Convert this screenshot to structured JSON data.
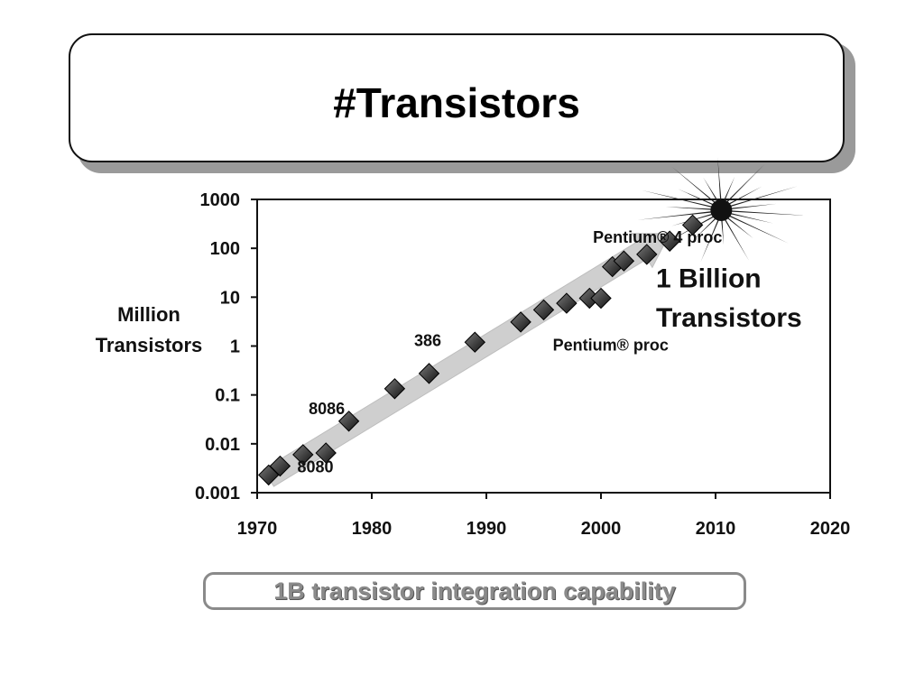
{
  "slide": {
    "title": "#Transistors",
    "caption": "1B transistor integration capability"
  },
  "chart_data": {
    "type": "scatter",
    "xlabel": "",
    "ylabel_lines": [
      "Million",
      "Transistors"
    ],
    "xlim": [
      1970,
      2020
    ],
    "ylim": [
      0.001,
      1000
    ],
    "y_scale": "log",
    "x_ticks": [
      1970,
      1980,
      1990,
      2000,
      2010,
      2020
    ],
    "y_ticks": [
      {
        "value": 0.001,
        "label": "0.001"
      },
      {
        "value": 0.01,
        "label": "0.01"
      },
      {
        "value": 0.1,
        "label": "0.1"
      },
      {
        "value": 1,
        "label": "1"
      },
      {
        "value": 10,
        "label": "10"
      },
      {
        "value": 100,
        "label": "100"
      },
      {
        "value": 1000,
        "label": "1000"
      }
    ],
    "grid": false,
    "series": [
      {
        "points": [
          [
            1971,
            0.0023
          ],
          [
            1972,
            0.0035
          ],
          [
            1974,
            0.006
          ],
          [
            1976,
            0.0065
          ],
          [
            1978,
            0.029
          ],
          [
            1982,
            0.134
          ],
          [
            1985,
            0.275
          ],
          [
            1989,
            1.2
          ],
          [
            1993,
            3.1
          ],
          [
            1995,
            5.5
          ],
          [
            1997,
            7.5
          ],
          [
            1999,
            9.5
          ],
          [
            2000,
            9.5
          ],
          [
            2001,
            42
          ],
          [
            2002,
            55
          ],
          [
            2004,
            75
          ],
          [
            2006,
            140
          ],
          [
            2008,
            300
          ]
        ]
      }
    ],
    "trend_arrow": {
      "from": [
        1971,
        0.002
      ],
      "to": [
        2006,
        200
      ]
    },
    "annotations": [
      {
        "text": "8080",
        "x": 1973.5,
        "y": 0.0026
      },
      {
        "text": "8086",
        "x": 1974.5,
        "y": 0.04
      },
      {
        "text": "386",
        "x": 1983.7,
        "y": 1.0
      },
      {
        "text": "Pentium® proc",
        "x": 1995.8,
        "y": 0.8
      },
      {
        "text": "Pentium® 4 proc",
        "x": 1999.3,
        "y": 130
      },
      {
        "text": "1 Billion",
        "x": 2004.8,
        "y": 16,
        "big": true
      },
      {
        "text": "Transistors",
        "x": 2004.8,
        "y": 2.5,
        "big": true
      }
    ],
    "starburst": {
      "x": 2010.5,
      "y": 600
    }
  }
}
